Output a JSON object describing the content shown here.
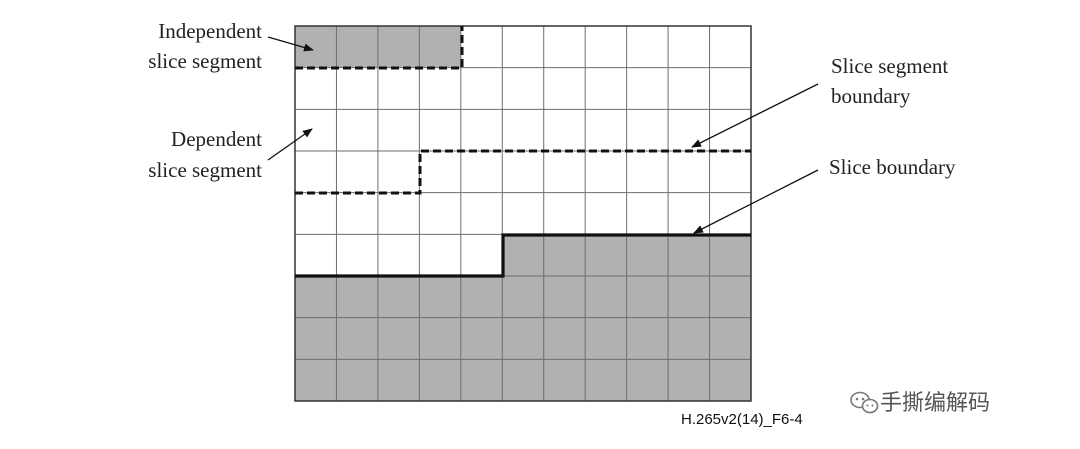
{
  "labels": {
    "independent_line1": "Independent",
    "independent_line2": "slice segment",
    "dependent_line1": "Dependent",
    "dependent_line2": "slice segment",
    "segment_boundary_line1": "Slice segment",
    "segment_boundary_line2": "boundary",
    "slice_boundary": "Slice boundary"
  },
  "caption": "H.265v2(14)_F6-4",
  "watermark": {
    "icon": "wechat-icon",
    "text": "手撕编解码"
  },
  "grid": {
    "cols": 11,
    "rows": 9,
    "shaded_color": "#b2b0b1",
    "line_color": "#6e6e6e",
    "shaded_cells_row0": [
      0,
      1,
      2,
      3
    ],
    "slice_boundary_split_col": 5,
    "slice_boundary_row_left": 6,
    "slice_boundary_row_right": 5
  }
}
